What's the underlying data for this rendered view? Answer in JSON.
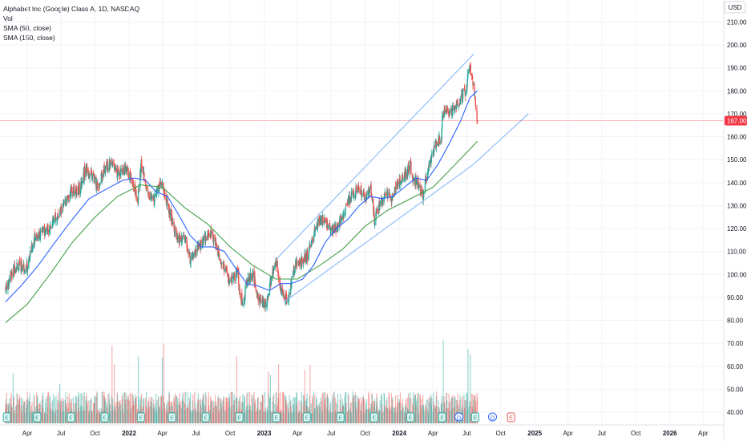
{
  "legend": {
    "title": "Alphabet Inc (Google) Class A, 1D, NASDAQ",
    "vol": "Vol",
    "sma50": "SMA (50, close)",
    "sma150": "SMA (150, close)"
  },
  "colors": {
    "up": "#26a69a",
    "down": "#ef5350",
    "sma50": "#2962ff",
    "sma150": "#43a047",
    "channel": "#90bff9",
    "price_line": "#f23645",
    "grid": "#f0f3fa",
    "earnings": "#26a69a",
    "dividend": "#2962ff"
  },
  "chart_data": {
    "type": "candlestick",
    "currency_label": "USD",
    "current_price_label": "167.00",
    "current_price": 167,
    "y_ticks": [
      "210.00",
      "200.00",
      "190.00",
      "180.00",
      "170.00",
      "160.00",
      "150.00",
      "140.00",
      "130.00",
      "120.00",
      "110.00",
      "100.00",
      "90.00",
      "80.00",
      "70.00",
      "60.00",
      "50.00",
      "40.00"
    ],
    "y_tick_values": [
      210,
      200,
      190,
      180,
      170,
      160,
      150,
      140,
      130,
      120,
      110,
      100,
      90,
      80,
      70,
      60,
      50,
      40
    ],
    "x_ticks": [
      {
        "label": "Apr",
        "date": "2021-04-01",
        "bold": false
      },
      {
        "label": "Jul",
        "date": "2021-07-01",
        "bold": false
      },
      {
        "label": "Oct",
        "date": "2021-10-01",
        "bold": false
      },
      {
        "label": "2022",
        "date": "2022-01-01",
        "bold": true
      },
      {
        "label": "Apr",
        "date": "2022-04-01",
        "bold": false
      },
      {
        "label": "Jul",
        "date": "2022-07-01",
        "bold": false
      },
      {
        "label": "Oct",
        "date": "2022-10-01",
        "bold": false
      },
      {
        "label": "2023",
        "date": "2023-01-01",
        "bold": true
      },
      {
        "label": "Apr",
        "date": "2023-04-01",
        "bold": false
      },
      {
        "label": "Jul",
        "date": "2023-07-01",
        "bold": false
      },
      {
        "label": "Oct",
        "date": "2023-10-01",
        "bold": false
      },
      {
        "label": "2024",
        "date": "2024-01-01",
        "bold": true
      },
      {
        "label": "Apr",
        "date": "2024-04-01",
        "bold": false
      },
      {
        "label": "Jul",
        "date": "2024-07-01",
        "bold": false
      },
      {
        "label": "Oct",
        "date": "2024-10-01",
        "bold": false
      },
      {
        "label": "2025",
        "date": "2025-01-01",
        "bold": true
      },
      {
        "label": "Apr",
        "date": "2025-04-01",
        "bold": false
      },
      {
        "label": "Jul",
        "date": "2025-07-01",
        "bold": false
      },
      {
        "label": "Oct",
        "date": "2025-10-01",
        "bold": false
      },
      {
        "label": "2026",
        "date": "2026-01-01",
        "bold": true
      },
      {
        "label": "Apr",
        "date": "2026-04-01",
        "bold": false
      }
    ],
    "price_path": [
      [
        "2021-02-01",
        94
      ],
      [
        "2021-03-01",
        104
      ],
      [
        "2021-04-01",
        103
      ],
      [
        "2021-04-20",
        116
      ],
      [
        "2021-05-10",
        118
      ],
      [
        "2021-06-01",
        121
      ],
      [
        "2021-06-25",
        126
      ],
      [
        "2021-07-10",
        130
      ],
      [
        "2021-07-28",
        136
      ],
      [
        "2021-08-20",
        137
      ],
      [
        "2021-09-05",
        146
      ],
      [
        "2021-09-25",
        142
      ],
      [
        "2021-10-10",
        138
      ],
      [
        "2021-10-28",
        147
      ],
      [
        "2021-11-15",
        149
      ],
      [
        "2021-11-30",
        144
      ],
      [
        "2021-12-20",
        146
      ],
      [
        "2022-01-05",
        143
      ],
      [
        "2022-01-25",
        133
      ],
      [
        "2022-02-03",
        148
      ],
      [
        "2022-02-20",
        136
      ],
      [
        "2022-03-05",
        132
      ],
      [
        "2022-03-29",
        141
      ],
      [
        "2022-04-15",
        130
      ],
      [
        "2022-05-01",
        122
      ],
      [
        "2022-05-12",
        114
      ],
      [
        "2022-05-31",
        116
      ],
      [
        "2022-06-16",
        106
      ],
      [
        "2022-07-05",
        111
      ],
      [
        "2022-07-20",
        114
      ],
      [
        "2022-08-10",
        119
      ],
      [
        "2022-08-30",
        109
      ],
      [
        "2022-09-15",
        103
      ],
      [
        "2022-09-30",
        96
      ],
      [
        "2022-10-20",
        101
      ],
      [
        "2022-10-27",
        93
      ],
      [
        "2022-11-05",
        86
      ],
      [
        "2022-11-15",
        97
      ],
      [
        "2022-12-01",
        100
      ],
      [
        "2022-12-20",
        88
      ],
      [
        "2023-01-05",
        87
      ],
      [
        "2023-01-20",
        98
      ],
      [
        "2023-02-05",
        107
      ],
      [
        "2023-02-10",
        95
      ],
      [
        "2023-02-24",
        89
      ],
      [
        "2023-03-10",
        91
      ],
      [
        "2023-03-25",
        104
      ],
      [
        "2023-04-15",
        106
      ],
      [
        "2023-04-28",
        108
      ],
      [
        "2023-05-15",
        117
      ],
      [
        "2023-05-30",
        124
      ],
      [
        "2023-06-15",
        123
      ],
      [
        "2023-06-30",
        119
      ],
      [
        "2023-07-20",
        121
      ],
      [
        "2023-08-10",
        129
      ],
      [
        "2023-08-30",
        136
      ],
      [
        "2023-09-15",
        138
      ],
      [
        "2023-09-30",
        133
      ],
      [
        "2023-10-15",
        139
      ],
      [
        "2023-10-26",
        123
      ],
      [
        "2023-11-10",
        131
      ],
      [
        "2023-11-28",
        136
      ],
      [
        "2023-12-10",
        132
      ],
      [
        "2023-12-28",
        140
      ],
      [
        "2024-01-15",
        143
      ],
      [
        "2024-01-31",
        148
      ],
      [
        "2024-02-05",
        142
      ],
      [
        "2024-02-20",
        140
      ],
      [
        "2024-03-05",
        134
      ],
      [
        "2024-03-20",
        147
      ],
      [
        "2024-04-10",
        157
      ],
      [
        "2024-04-24",
        159
      ],
      [
        "2024-04-26",
        171
      ],
      [
        "2024-05-15",
        171
      ],
      [
        "2024-05-30",
        172
      ],
      [
        "2024-06-15",
        177
      ],
      [
        "2024-06-28",
        180
      ],
      [
        "2024-07-10",
        191
      ],
      [
        "2024-07-16",
        187
      ],
      [
        "2024-07-25",
        174
      ],
      [
        "2024-07-30",
        167
      ]
    ],
    "sma50_path": [
      [
        "2021-02-01",
        88
      ],
      [
        "2021-03-15",
        95
      ],
      [
        "2021-05-01",
        104
      ],
      [
        "2021-06-15",
        114
      ],
      [
        "2021-08-01",
        124
      ],
      [
        "2021-09-15",
        133
      ],
      [
        "2021-10-30",
        137
      ],
      [
        "2021-12-15",
        141
      ],
      [
        "2022-01-15",
        142
      ],
      [
        "2022-02-15",
        141
      ],
      [
        "2022-03-15",
        136
      ],
      [
        "2022-04-15",
        134
      ],
      [
        "2022-05-15",
        126
      ],
      [
        "2022-06-15",
        117
      ],
      [
        "2022-07-15",
        112
      ],
      [
        "2022-08-15",
        112
      ],
      [
        "2022-09-15",
        110
      ],
      [
        "2022-10-15",
        103
      ],
      [
        "2022-11-15",
        96
      ],
      [
        "2022-12-15",
        95
      ],
      [
        "2023-01-15",
        93
      ],
      [
        "2023-02-15",
        96
      ],
      [
        "2023-03-15",
        96
      ],
      [
        "2023-04-15",
        98
      ],
      [
        "2023-05-15",
        104
      ],
      [
        "2023-06-15",
        114
      ],
      [
        "2023-07-15",
        120
      ],
      [
        "2023-08-15",
        124
      ],
      [
        "2023-09-15",
        130
      ],
      [
        "2023-10-15",
        134
      ],
      [
        "2023-11-15",
        133
      ],
      [
        "2023-12-15",
        134
      ],
      [
        "2024-01-15",
        138
      ],
      [
        "2024-02-15",
        142
      ],
      [
        "2024-03-15",
        141
      ],
      [
        "2024-04-15",
        148
      ],
      [
        "2024-05-15",
        157
      ],
      [
        "2024-06-15",
        167
      ],
      [
        "2024-07-10",
        177
      ],
      [
        "2024-07-30",
        180
      ]
    ],
    "sma150_path": [
      [
        "2021-02-01",
        79
      ],
      [
        "2021-04-01",
        87
      ],
      [
        "2021-06-01",
        100
      ],
      [
        "2021-08-01",
        114
      ],
      [
        "2021-10-01",
        125
      ],
      [
        "2021-12-01",
        134
      ],
      [
        "2022-02-01",
        139
      ],
      [
        "2022-04-01",
        138
      ],
      [
        "2022-06-01",
        129
      ],
      [
        "2022-08-01",
        122
      ],
      [
        "2022-10-01",
        112
      ],
      [
        "2022-12-01",
        104
      ],
      [
        "2023-02-01",
        98
      ],
      [
        "2023-04-01",
        98
      ],
      [
        "2023-06-01",
        104
      ],
      [
        "2023-08-01",
        111
      ],
      [
        "2023-10-01",
        121
      ],
      [
        "2023-12-01",
        128
      ],
      [
        "2024-02-01",
        133
      ],
      [
        "2024-04-01",
        138
      ],
      [
        "2024-06-01",
        148
      ],
      [
        "2024-07-30",
        158
      ]
    ],
    "channel_lines": [
      {
        "name": "",
        "from": [
          "2023-02-05",
          107
        ],
        "to": [
          "2024-07-20",
          196
        ]
      },
      {
        "name": "",
        "from": [
          "2023-02-24",
          88
        ],
        "to": [
          "2024-07-20",
          148
        ]
      },
      {
        "name": "",
        "from": [
          "2024-07-20",
          148
        ],
        "to": [
          "2024-12-15",
          170
        ]
      }
    ],
    "events": [
      {
        "type": "E",
        "date": "2021-02-05",
        "past": true
      },
      {
        "type": "E",
        "date": "2021-04-28",
        "past": true
      },
      {
        "type": "E",
        "date": "2021-07-28",
        "past": true
      },
      {
        "type": "E",
        "date": "2021-10-27",
        "past": true
      },
      {
        "type": "E",
        "date": "2022-02-02",
        "past": true
      },
      {
        "type": "E",
        "date": "2022-04-27",
        "past": true
      },
      {
        "type": "E",
        "date": "2022-07-27",
        "past": true
      },
      {
        "type": "E",
        "date": "2022-10-26",
        "past": true
      },
      {
        "type": "E",
        "date": "2023-02-03",
        "past": true
      },
      {
        "type": "E",
        "date": "2023-04-26",
        "past": true
      },
      {
        "type": "E",
        "date": "2023-07-26",
        "past": true
      },
      {
        "type": "E",
        "date": "2023-10-25",
        "past": true
      },
      {
        "type": "E",
        "date": "2024-01-31",
        "past": true
      },
      {
        "type": "E",
        "date": "2024-04-26",
        "past": true
      },
      {
        "type": "D",
        "date": "2024-06-10",
        "past": true
      },
      {
        "type": "E",
        "date": "2024-07-24",
        "past": true
      },
      {
        "type": "D",
        "date": "2024-09-09",
        "past": false
      },
      {
        "type": "E",
        "date": "2024-10-29",
        "past": false
      }
    ]
  }
}
